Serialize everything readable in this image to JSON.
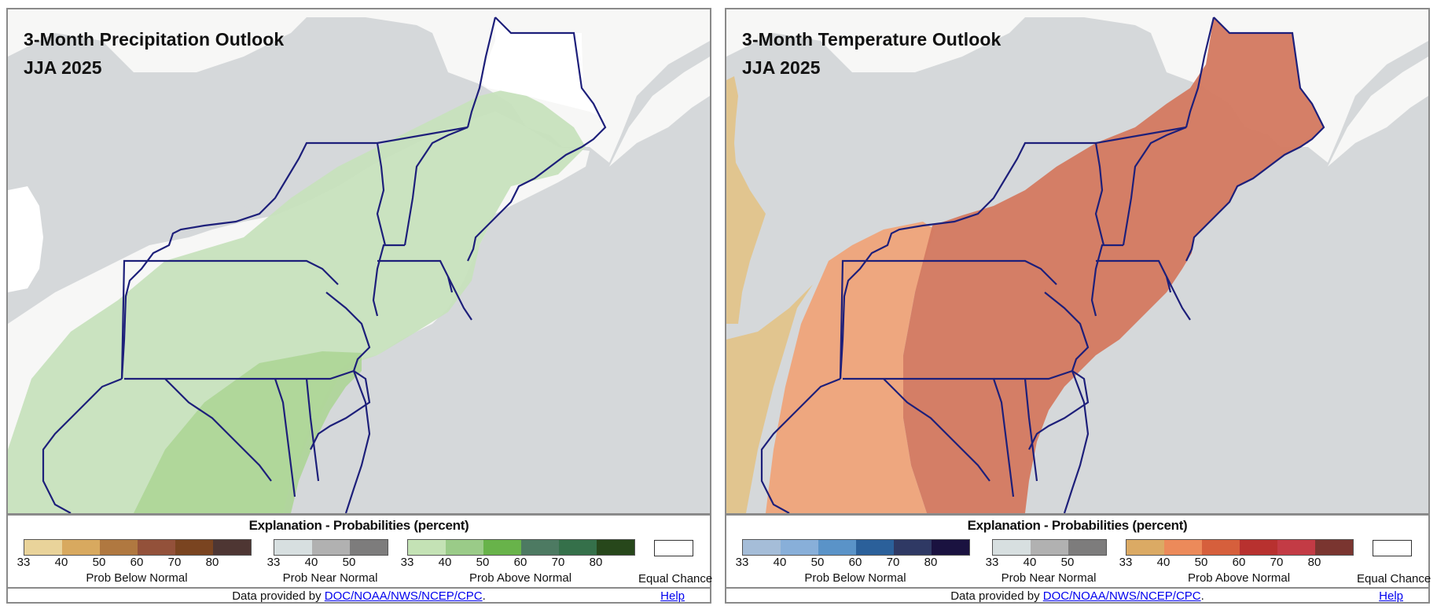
{
  "panels": [
    {
      "title": "3-Month Precipitation Outlook",
      "period": "JJA 2025",
      "legend": {
        "title": "Explanation - Probabilities (percent)",
        "below": {
          "label": "Prob Below Normal",
          "ticks": [
            "33",
            "40",
            "50",
            "60",
            "70",
            "80"
          ],
          "colors": [
            "#e9d39a",
            "#d8a95f",
            "#b07840",
            "#93513a",
            "#7a4420",
            "#4e3633"
          ]
        },
        "near": {
          "label": "Prob Near Normal",
          "ticks": [
            "33",
            "40",
            "50"
          ],
          "colors": [
            "#d7dfe0",
            "#b1b1b1",
            "#7d7c7c"
          ]
        },
        "above": {
          "label": "Prob Above Normal",
          "ticks": [
            "33",
            "40",
            "50",
            "60",
            "70",
            "80"
          ],
          "colors": [
            "#c4e2b5",
            "#9acb88",
            "#68b34a",
            "#4d7a62",
            "#35704a",
            "#27471b"
          ]
        },
        "equal_chance": "Equal Chance"
      },
      "credit_prefix": "Data provided by ",
      "credit_link": "DOC/NOAA/NWS/NCEP/CPC",
      "credit_suffix": ".",
      "help": "Help",
      "colors": {
        "land": "#f7f7f6",
        "water": "#d5d8da",
        "border": "#1d1f7a",
        "zone_low": "#c7e2bd",
        "zone_mid": "#add596",
        "equal_chance": "#ffffff"
      }
    },
    {
      "title": "3-Month Temperature Outlook",
      "period": "JJA 2025",
      "legend": {
        "title": "Explanation - Probabilities (percent)",
        "below": {
          "label": "Prob Below Normal",
          "ticks": [
            "33",
            "40",
            "50",
            "60",
            "70",
            "80"
          ],
          "colors": [
            "#a5bdd8",
            "#88afd9",
            "#5a93c8",
            "#2b609a",
            "#2f3964",
            "#1a1240"
          ]
        },
        "near": {
          "label": "Prob Near Normal",
          "ticks": [
            "33",
            "40",
            "50"
          ],
          "colors": [
            "#d7dfe0",
            "#b1b1b1",
            "#7d7c7c"
          ]
        },
        "above": {
          "label": "Prob Above Normal",
          "ticks": [
            "33",
            "40",
            "50",
            "60",
            "70",
            "80"
          ],
          "colors": [
            "#dbaa64",
            "#ec8a5a",
            "#d65f3c",
            "#b8312f",
            "#c33b45",
            "#7a3530"
          ]
        },
        "equal_chance": "Equal Chance"
      },
      "credit_prefix": "Data provided by ",
      "credit_link": "DOC/NOAA/NWS/NCEP/CPC",
      "credit_suffix": ".",
      "help": "Help",
      "colors": {
        "land": "#f7f7f6",
        "water": "#d5d8da",
        "border": "#1d1f7a",
        "zone_low": "#e2c48b",
        "zone_mid": "#efa47a",
        "zone_high": "#d47b62"
      }
    }
  ]
}
